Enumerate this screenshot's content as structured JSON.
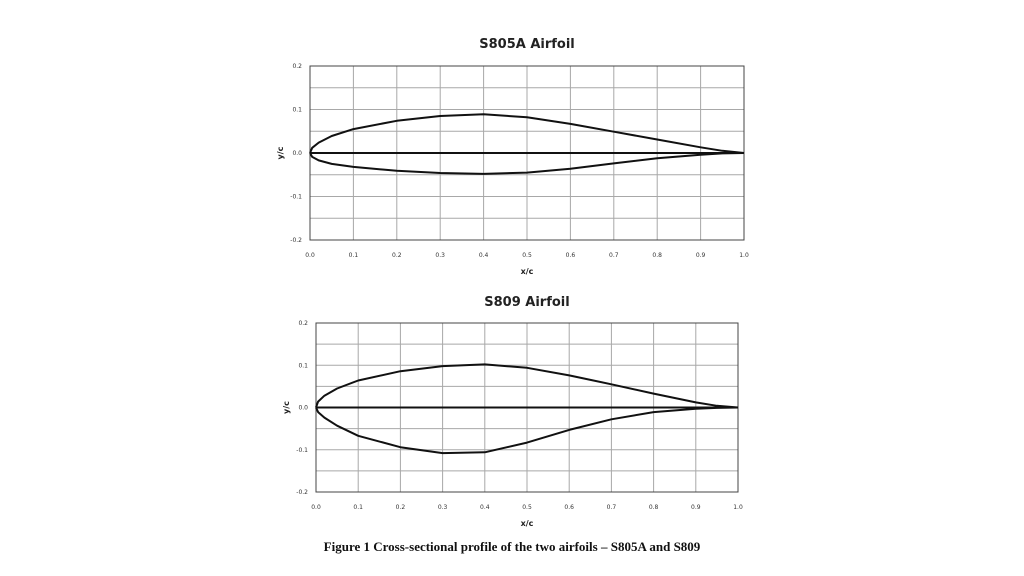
{
  "caption": "Figure 1 Cross-sectional profile of the two airfoils – S805A and S809",
  "chart_data": [
    {
      "type": "line",
      "title": "S805A Airfoil",
      "xlabel": "x/c",
      "ylabel": "y/c",
      "xlim": [
        0.0,
        1.0
      ],
      "ylim": [
        -0.2,
        0.2
      ],
      "xticks": [
        "0.0",
        "0.1",
        "0.2",
        "0.3",
        "0.4",
        "0.5",
        "0.6",
        "0.7",
        "0.8",
        "0.9",
        "1.0"
      ],
      "yticks": [
        "0.2",
        "0.1",
        "0.0",
        "-0.1",
        "-0.2"
      ],
      "grid": true,
      "series": [
        {
          "x": [
            0.0,
            0.005,
            0.02,
            0.05,
            0.1,
            0.2,
            0.3,
            0.4,
            0.5,
            0.6,
            0.7,
            0.8,
            0.9,
            0.95,
            1.0
          ],
          "y": [
            0.0,
            0.012,
            0.024,
            0.039,
            0.055,
            0.074,
            0.085,
            0.089,
            0.082,
            0.067,
            0.049,
            0.031,
            0.013,
            0.005,
            0.0
          ]
        },
        {
          "x": [
            0.0,
            0.005,
            0.02,
            0.05,
            0.1,
            0.2,
            0.3,
            0.4,
            0.5,
            0.6,
            0.7,
            0.8,
            0.9,
            0.95,
            1.0
          ],
          "y": [
            0.0,
            -0.009,
            -0.017,
            -0.025,
            -0.032,
            -0.041,
            -0.046,
            -0.048,
            -0.045,
            -0.036,
            -0.024,
            -0.012,
            -0.004,
            -0.001,
            0.0
          ]
        }
      ]
    },
    {
      "type": "line",
      "title": "S809 Airfoil",
      "xlabel": "x/c",
      "ylabel": "y/c",
      "xlim": [
        0.0,
        1.0
      ],
      "ylim": [
        -0.2,
        0.2
      ],
      "xticks": [
        "0.0",
        "0.1",
        "0.2",
        "0.3",
        "0.4",
        "0.5",
        "0.6",
        "0.7",
        "0.8",
        "0.9",
        "1.0"
      ],
      "yticks": [
        "0.2",
        "0.1",
        "0.0",
        "-0.1",
        "-0.2"
      ],
      "grid": true,
      "series": [
        {
          "x": [
            0.0,
            0.005,
            0.02,
            0.05,
            0.1,
            0.2,
            0.3,
            0.4,
            0.5,
            0.6,
            0.7,
            0.8,
            0.9,
            0.95,
            1.0
          ],
          "y": [
            0.0,
            0.014,
            0.028,
            0.045,
            0.064,
            0.086,
            0.098,
            0.102,
            0.094,
            0.076,
            0.055,
            0.033,
            0.012,
            0.004,
            0.0
          ]
        },
        {
          "x": [
            0.0,
            0.005,
            0.02,
            0.05,
            0.1,
            0.2,
            0.3,
            0.4,
            0.5,
            0.6,
            0.7,
            0.8,
            0.9,
            0.95,
            1.0
          ],
          "y": [
            0.0,
            -0.011,
            -0.024,
            -0.043,
            -0.067,
            -0.094,
            -0.108,
            -0.106,
            -0.083,
            -0.053,
            -0.028,
            -0.011,
            -0.003,
            -0.001,
            0.0
          ]
        }
      ]
    }
  ]
}
